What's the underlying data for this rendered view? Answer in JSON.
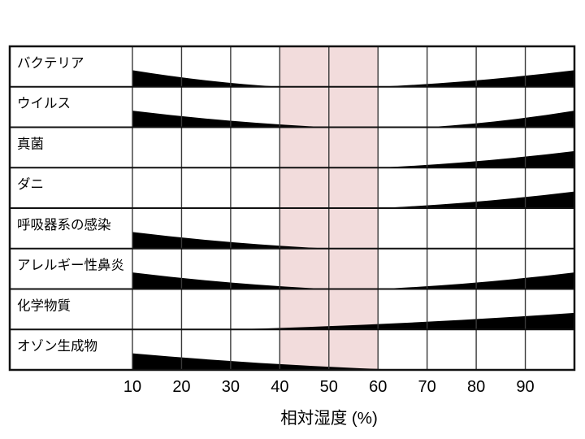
{
  "chart_data": {
    "type": "area",
    "variant": "humidity-wedge-chart",
    "title": "",
    "xlabel": "相対湿度 (%)",
    "ylabel": "",
    "x_range": [
      10,
      100
    ],
    "x_ticks": [
      "10",
      "20",
      "30",
      "40",
      "50",
      "60",
      "70",
      "80",
      "90"
    ],
    "grid": true,
    "optimal_band": {
      "from": 40,
      "to": 60,
      "color": "#f2dcdc"
    },
    "rows": [
      {
        "label": "バクテリア",
        "wedges": [
          {
            "from": 10,
            "to": 40,
            "thick_end": "left"
          },
          {
            "from": 60,
            "to": 100,
            "thick_end": "right"
          }
        ]
      },
      {
        "label": "ウイルス",
        "wedges": [
          {
            "from": 10,
            "to": 50,
            "thick_end": "left"
          },
          {
            "from": 70,
            "to": 100,
            "thick_end": "right"
          }
        ]
      },
      {
        "label": "真菌",
        "wedges": [
          {
            "from": 60,
            "to": 100,
            "thick_end": "right"
          }
        ]
      },
      {
        "label": "ダニ",
        "wedges": [
          {
            "from": 60,
            "to": 100,
            "thick_end": "right"
          }
        ]
      },
      {
        "label": "呼吸器系の感染",
        "wedges": [
          {
            "from": 10,
            "to": 50,
            "thick_end": "left"
          }
        ]
      },
      {
        "label": "アレルギー性鼻炎",
        "wedges": [
          {
            "from": 10,
            "to": 50,
            "thick_end": "left"
          },
          {
            "from": 60,
            "to": 100,
            "thick_end": "right"
          }
        ]
      },
      {
        "label": "化学物質",
        "wedges": [
          {
            "from": 30,
            "to": 100,
            "thick_end": "right"
          }
        ]
      },
      {
        "label": "オゾン生成物",
        "wedges": [
          {
            "from": 10,
            "to": 65,
            "thick_end": "left"
          }
        ]
      }
    ],
    "colors": {
      "wedge": "#000000",
      "grid_vertical": "#3a3a3a",
      "grid_horizontal": "#111111",
      "border": "#111111",
      "band": "#f2dcdc",
      "background": "#ffffff",
      "text": "#000000"
    }
  }
}
